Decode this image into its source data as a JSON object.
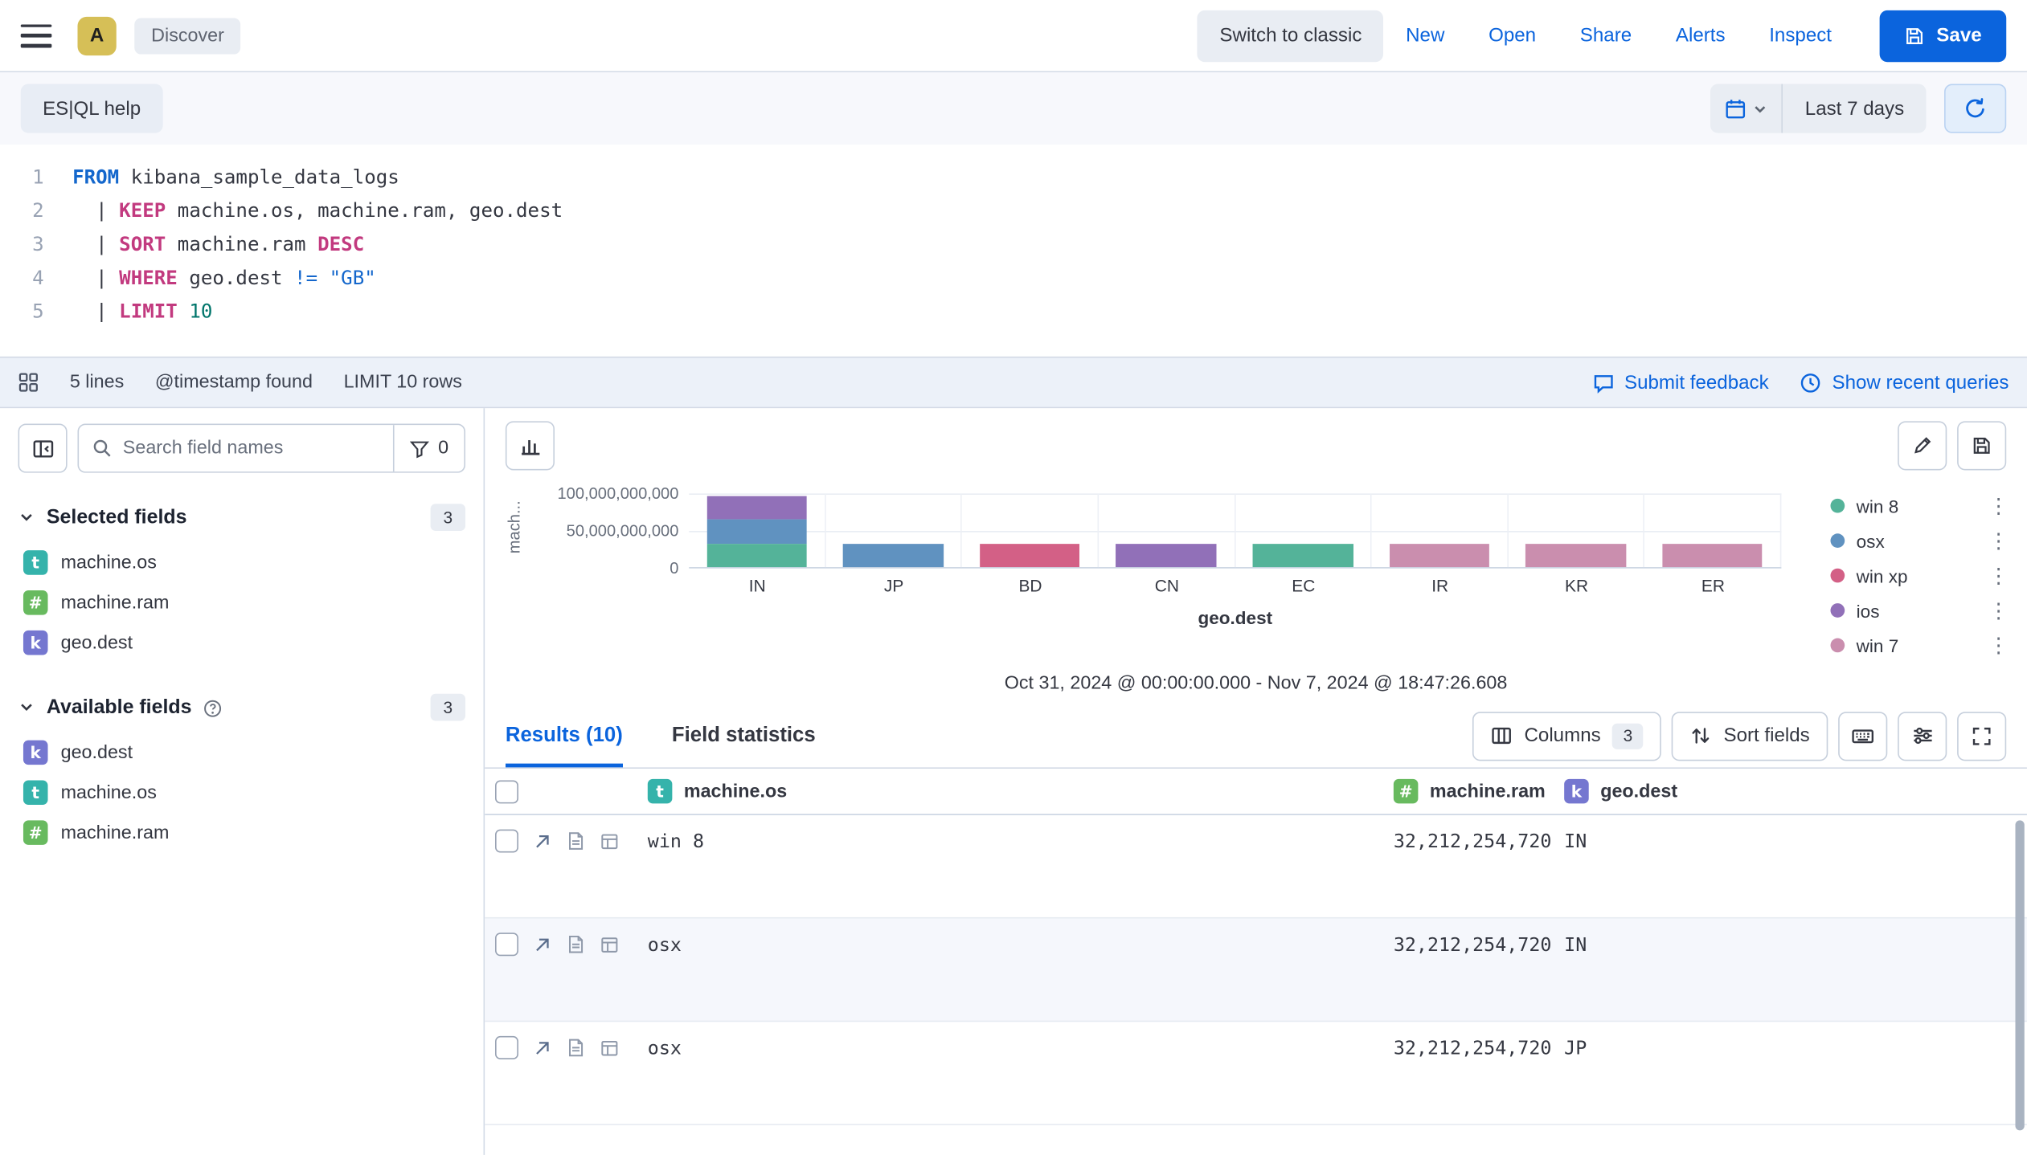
{
  "topbar": {
    "avatar_initial": "A",
    "breadcrumb": "Discover",
    "switch_classic": "Switch to classic",
    "links": [
      "New",
      "Open",
      "Share",
      "Alerts",
      "Inspect"
    ],
    "save": "Save"
  },
  "query_bar": {
    "help_button": "ES|QL help",
    "time_range": "Last 7 days"
  },
  "editor": {
    "lines": [
      {
        "num": "1",
        "tokens": [
          {
            "text": "FROM",
            "type": "source"
          },
          {
            "text": " kibana_sample_data_logs",
            "type": "plain"
          }
        ]
      },
      {
        "num": "2",
        "tokens": [
          {
            "text": "  | ",
            "type": "plain"
          },
          {
            "text": "KEEP",
            "type": "command"
          },
          {
            "text": " machine.os, machine.ram, geo.dest",
            "type": "plain"
          }
        ]
      },
      {
        "num": "3",
        "tokens": [
          {
            "text": "  | ",
            "type": "plain"
          },
          {
            "text": "SORT",
            "type": "command"
          },
          {
            "text": " machine.ram ",
            "type": "plain"
          },
          {
            "text": "DESC",
            "type": "command"
          }
        ]
      },
      {
        "num": "4",
        "tokens": [
          {
            "text": "  | ",
            "type": "plain"
          },
          {
            "text": "WHERE",
            "type": "command"
          },
          {
            "text": " geo.dest ",
            "type": "plain"
          },
          {
            "text": "!=",
            "type": "operator"
          },
          {
            "text": " ",
            "type": "plain"
          },
          {
            "text": "\"GB\"",
            "type": "string"
          }
        ]
      },
      {
        "num": "5",
        "tokens": [
          {
            "text": "  | ",
            "type": "plain"
          },
          {
            "text": "LIMIT",
            "type": "command"
          },
          {
            "text": " ",
            "type": "plain"
          },
          {
            "text": "10",
            "type": "number"
          }
        ]
      }
    ]
  },
  "editor_footer": {
    "lines_count": "5 lines",
    "timestamp_info": "@timestamp found",
    "limit_info": "LIMIT 10 rows",
    "submit_feedback": "Submit feedback",
    "show_recent_queries": "Show recent queries"
  },
  "sidebar": {
    "search_placeholder": "Search field names",
    "filter_count": "0",
    "selected": {
      "label": "Selected fields",
      "count": "3",
      "fields": [
        {
          "name": "machine.os",
          "type": "t"
        },
        {
          "name": "machine.ram",
          "type": "#"
        },
        {
          "name": "geo.dest",
          "type": "k"
        }
      ]
    },
    "available": {
      "label": "Available fields",
      "count": "3",
      "fields": [
        {
          "name": "geo.dest",
          "type": "k"
        },
        {
          "name": "machine.os",
          "type": "t"
        },
        {
          "name": "machine.ram",
          "type": "#"
        }
      ]
    }
  },
  "chart_data": {
    "type": "bar",
    "stacked": true,
    "xlabel": "geo.dest",
    "ylabel": "mach...",
    "categories": [
      "IN",
      "JP",
      "BD",
      "CN",
      "EC",
      "IR",
      "KR",
      "ER"
    ],
    "series": [
      {
        "name": "win 8",
        "color": "#54B399",
        "values": [
          32212254720,
          0,
          0,
          0,
          32212254720,
          0,
          0,
          0
        ]
      },
      {
        "name": "osx",
        "color": "#6092C0",
        "values": [
          32212254720,
          32212254720,
          0,
          0,
          0,
          0,
          0,
          0
        ]
      },
      {
        "name": "win xp",
        "color": "#D36086",
        "values": [
          0,
          0,
          32212254720,
          0,
          0,
          0,
          0,
          0
        ]
      },
      {
        "name": "ios",
        "color": "#9170B8",
        "values": [
          32212254720,
          0,
          0,
          32212254720,
          0,
          0,
          0,
          0
        ]
      },
      {
        "name": "win 7",
        "color": "#CA8EAE",
        "values": [
          0,
          0,
          0,
          0,
          0,
          32212254720,
          32212254720,
          32212254720
        ]
      }
    ],
    "ylim": [
      0,
      100000000000
    ],
    "yticks": [
      {
        "value": 0,
        "label": "0"
      },
      {
        "value": 50000000000,
        "label": "50,000,000,000"
      },
      {
        "value": 100000000000,
        "label": "100,000,000,000"
      }
    ],
    "legend_position": "right",
    "grid": true,
    "time_range_label": "Oct 31, 2024 @ 00:00:00.000 - Nov 7, 2024 @ 18:47:26.608"
  },
  "results": {
    "tab_results": "Results (10)",
    "tab_field_statistics": "Field statistics",
    "columns_button": "Columns",
    "columns_count": "3",
    "sort_fields_button": "Sort fields",
    "table": {
      "columns": [
        {
          "name": "machine.os",
          "type": "t"
        },
        {
          "name": "machine.ram",
          "type": "#"
        },
        {
          "name": "geo.dest",
          "type": "k"
        }
      ],
      "rows": [
        {
          "os": "win 8",
          "ram": "32,212,254,720",
          "dest": "IN"
        },
        {
          "os": "osx",
          "ram": "32,212,254,720",
          "dest": "IN"
        },
        {
          "os": "osx",
          "ram": "32,212,254,720",
          "dest": "JP"
        }
      ]
    }
  },
  "icons": {
    "legend_actions_glyph": "⋮"
  }
}
